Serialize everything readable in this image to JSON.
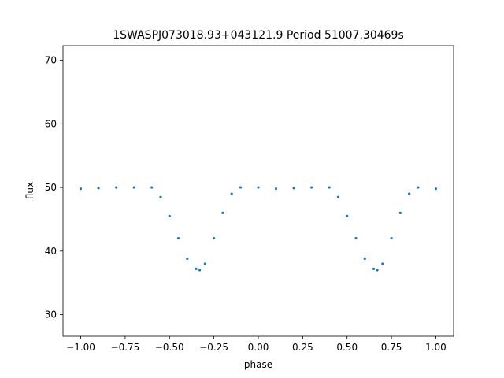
{
  "chart_data": {
    "type": "scatter",
    "title": "1SWASPJ073018.93+043121.9 Period 51007.30469s",
    "xlabel": "phase",
    "ylabel": "flux",
    "xlim": [
      -1.1,
      1.1
    ],
    "ylim": [
      26.6,
      72.3
    ],
    "grid": false,
    "legend": "none",
    "x_ticks": [
      -1.0,
      -0.75,
      -0.5,
      -0.25,
      0.0,
      0.25,
      0.5,
      0.75,
      1.0
    ],
    "x_tick_labels": [
      "−1.00",
      "−0.75",
      "−0.50",
      "−0.25",
      "0.00",
      "0.25",
      "0.50",
      "0.75",
      "1.00"
    ],
    "y_ticks": [
      30,
      40,
      50,
      60,
      70
    ],
    "y_tick_labels": [
      "30",
      "40",
      "50",
      "60",
      "70"
    ],
    "series": [
      {
        "color": "#1f77b4",
        "description_of_shape": [],
        "x": [
          -1.0,
          -0.9,
          -0.8,
          -0.7,
          -0.6,
          -0.55,
          -0.5,
          -0.45,
          -0.4,
          -0.35,
          -0.33,
          -0.3,
          -0.25,
          -0.2,
          -0.15,
          -0.1,
          0.0,
          0.1,
          0.2,
          0.3,
          0.4,
          0.45,
          0.5,
          0.55,
          0.6,
          0.65,
          0.67,
          0.7,
          0.75,
          0.8,
          0.85,
          0.9,
          1.0
        ],
        "y": [
          49.8,
          49.9,
          50.0,
          50.0,
          50.0,
          48.5,
          45.5,
          42.0,
          38.8,
          37.2,
          37.0,
          38.0,
          42.0,
          46.0,
          49.0,
          50.0,
          50.0,
          49.8,
          49.9,
          50.0,
          50.0,
          48.5,
          45.5,
          42.0,
          38.8,
          37.2,
          37.0,
          38.0,
          42.0,
          46.0,
          49.0,
          50.0,
          49.8
        ]
      }
    ]
  }
}
